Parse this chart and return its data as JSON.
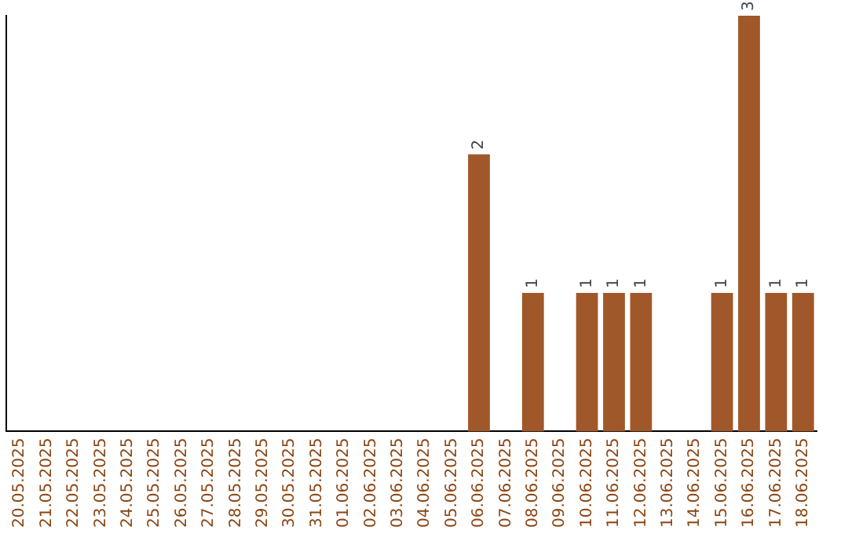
{
  "chart_data": {
    "type": "bar",
    "categories": [
      "20.05.2025",
      "21.05.2025",
      "22.05.2025",
      "23.05.2025",
      "24.05.2025",
      "25.05.2025",
      "26.05.2025",
      "27.05.2025",
      "28.05.2025",
      "29.05.2025",
      "30.05.2025",
      "31.05.2025",
      "01.06.2025",
      "02.06.2025",
      "03.06.2025",
      "04.06.2025",
      "05.06.2025",
      "06.06.2025",
      "07.06.2025",
      "08.06.2025",
      "09.06.2025",
      "10.06.2025",
      "11.06.2025",
      "12.06.2025",
      "13.06.2025",
      "14.06.2025",
      "15.06.2025",
      "16.06.2025",
      "17.06.2025",
      "18.06.2025"
    ],
    "values": [
      null,
      null,
      null,
      null,
      null,
      null,
      null,
      null,
      null,
      null,
      null,
      null,
      null,
      null,
      null,
      null,
      null,
      2,
      null,
      1,
      null,
      1,
      1,
      1,
      null,
      null,
      1,
      3,
      1,
      1
    ],
    "data_labels": true,
    "color": "#a0582a",
    "grid": false,
    "tick_labels": "x"
  }
}
